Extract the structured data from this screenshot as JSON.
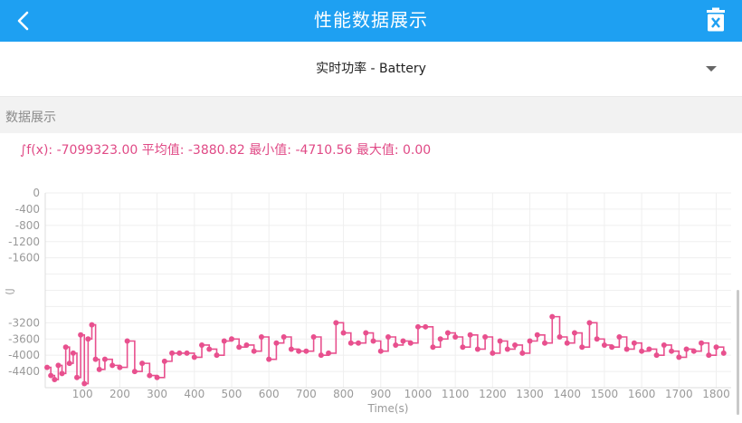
{
  "header": {
    "title": "性能数据展示",
    "back_icon": "chevron-left-icon",
    "delete_icon": "trash-icon",
    "bar_color": "#1ea0f2"
  },
  "selector": {
    "value": "实时功率 - Battery",
    "icon": "caret-down-icon"
  },
  "section": {
    "title": "数据展示"
  },
  "stats": {
    "text": "∫f(x): -7099323.00 平均值: -3880.82 最小值: -4710.56 最大值: 0.00"
  },
  "chart_data": {
    "type": "line",
    "xlabel": "Time(s)",
    "ylabel": "(J",
    "ylim": [
      -4800,
      0
    ],
    "xlim": [
      0,
      1840
    ],
    "yticks": [
      0,
      -400,
      -800,
      -1200,
      -1600,
      -2000,
      -2400,
      -2800,
      -3200,
      -3600,
      -4000,
      -4400
    ],
    "ytick_labels": [
      "0",
      "-400",
      "-800",
      "-1200",
      "-1600",
      "",
      "",
      "",
      "-3200",
      "-3600",
      "-4000",
      "-4400"
    ],
    "xticks": [
      100,
      200,
      300,
      400,
      500,
      600,
      700,
      800,
      900,
      1000,
      1100,
      1200,
      1300,
      1400,
      1500,
      1600,
      1700,
      1800
    ],
    "xtick_labels": [
      "100",
      "200",
      "300",
      "400",
      "500",
      "600",
      "700",
      "800",
      "900",
      "1000",
      "1100",
      "1200",
      "1300",
      "1400",
      "1500",
      "1600",
      "1700",
      "1800"
    ],
    "grid": true,
    "line_color": "#e8508e",
    "series": [
      {
        "x": [
          5,
          15,
          25,
          35,
          45,
          55,
          65,
          75,
          85,
          95,
          105,
          115,
          125,
          135,
          145,
          160,
          180,
          200,
          220,
          240,
          260,
          280,
          300,
          320,
          340,
          360,
          380,
          400,
          420,
          440,
          460,
          480,
          500,
          520,
          540,
          560,
          580,
          600,
          620,
          640,
          660,
          680,
          700,
          720,
          740,
          760,
          780,
          800,
          820,
          840,
          860,
          880,
          900,
          920,
          940,
          960,
          980,
          1000,
          1020,
          1040,
          1060,
          1080,
          1100,
          1120,
          1140,
          1160,
          1180,
          1200,
          1220,
          1240,
          1260,
          1280,
          1300,
          1320,
          1340,
          1360,
          1380,
          1400,
          1420,
          1440,
          1460,
          1480,
          1500,
          1520,
          1540,
          1560,
          1580,
          1600,
          1620,
          1640,
          1660,
          1680,
          1700,
          1720,
          1740,
          1760,
          1780,
          1800,
          1820
        ],
        "y": [
          -4300,
          -4500,
          -4600,
          -4250,
          -4450,
          -3800,
          -4200,
          -3950,
          -4550,
          -3500,
          -4700,
          -3600,
          -3250,
          -4100,
          -4350,
          -4100,
          -4250,
          -4300,
          -3650,
          -4400,
          -4200,
          -4500,
          -4550,
          -4150,
          -3950,
          -3950,
          -3950,
          -4050,
          -3750,
          -3850,
          -4000,
          -3650,
          -3600,
          -3800,
          -3750,
          -3900,
          -3550,
          -4100,
          -3700,
          -3550,
          -3850,
          -3900,
          -3900,
          -3550,
          -4000,
          -3950,
          -3200,
          -3450,
          -3700,
          -3700,
          -3450,
          -3650,
          -3900,
          -3550,
          -3750,
          -3650,
          -3700,
          -3300,
          -3300,
          -3800,
          -3600,
          -3450,
          -3550,
          -3800,
          -3500,
          -3850,
          -3550,
          -3950,
          -3650,
          -3850,
          -3750,
          -3950,
          -3650,
          -3500,
          -3700,
          -3050,
          -3550,
          -3700,
          -3450,
          -3800,
          -3200,
          -3600,
          -3750,
          -3800,
          -3550,
          -3850,
          -3700,
          -3900,
          -3850,
          -4000,
          -3750,
          -3900,
          -4050,
          -3850,
          -3900,
          -3700,
          -4000,
          -3800,
          -3950
        ]
      }
    ]
  }
}
